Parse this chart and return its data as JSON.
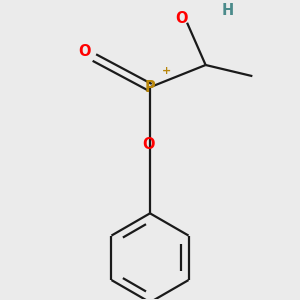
{
  "bg_color": "#ebebeb",
  "bond_color": "#1a1a1a",
  "P_color": "#b8860b",
  "O_color": "#ff0000",
  "H_color": "#4a8a8a",
  "lw": 1.6,
  "fig_size": [
    3.0,
    3.0
  ],
  "dpi": 100,
  "xlim": [
    -1.8,
    1.8
  ],
  "ylim": [
    -2.5,
    1.5
  ]
}
